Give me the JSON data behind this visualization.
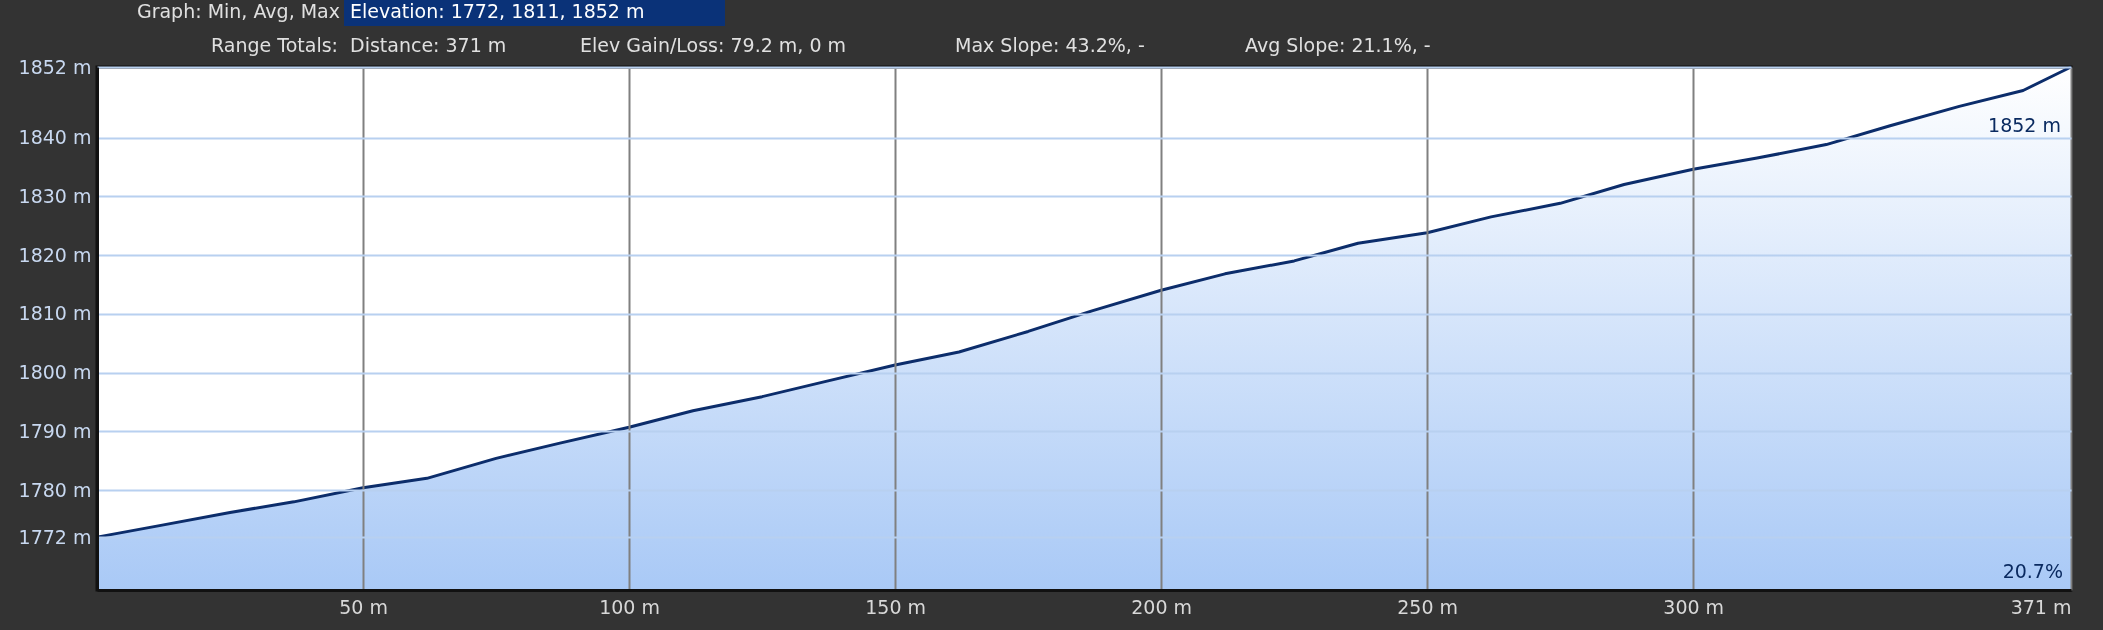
{
  "chart_data": {
    "type": "area",
    "annotations": [
      "Graph: Min, Avg, Max",
      "Elevation: 1772, 1811, 1852 m",
      "Range Totals:",
      "Distance: 371 m",
      "Elev Gain/Loss: 79.2 m, 0 m",
      "Max Slope: 43.2%, -",
      "Avg Slope: 21.1%, -",
      "20.7%",
      {
        "text": "1852 m",
        "x": 371,
        "y": 1852
      }
    ],
    "x": [
      0,
      12,
      25,
      37,
      50,
      62,
      75,
      87,
      100,
      112,
      125,
      137,
      150,
      162,
      175,
      187,
      200,
      212,
      225,
      237,
      250,
      262,
      275,
      287,
      300,
      312,
      325,
      337,
      350,
      362,
      371
    ],
    "series": [
      {
        "color": "#0c2d6b",
        "values": [
          1772,
          1774,
          1776.2,
          1778,
          1780.4,
          1782,
          1785.4,
          1788,
          1790.7,
          1793.5,
          1795.9,
          1798.5,
          1801.3,
          1803.5,
          1807,
          1810.5,
          1814,
          1816.8,
          1819,
          1822,
          1823.8,
          1826.5,
          1828.8,
          1832,
          1834.6,
          1836.5,
          1838.8,
          1842,
          1845.3,
          1848,
          1852
        ]
      }
    ],
    "xlim": [
      0,
      371
    ],
    "ylim": [
      1763,
      1852
    ],
    "xticks": [
      {
        "value": 50,
        "label": "50 m"
      },
      {
        "value": 100,
        "label": "100 m"
      },
      {
        "value": 150,
        "label": "150 m"
      },
      {
        "value": 200,
        "label": "200 m"
      },
      {
        "value": 250,
        "label": "250 m"
      },
      {
        "value": 300,
        "label": "300 m"
      },
      {
        "value": 371,
        "label": "371 m"
      }
    ],
    "yticks": [
      {
        "value": 1772,
        "label": "1772 m"
      },
      {
        "value": 1780,
        "label": "1780 m"
      },
      {
        "value": 1790,
        "label": "1790 m"
      },
      {
        "value": 1800,
        "label": "1800 m"
      },
      {
        "value": 1810,
        "label": "1810 m"
      },
      {
        "value": 1820,
        "label": "1820 m"
      },
      {
        "value": 1830,
        "label": "1830 m"
      },
      {
        "value": 1840,
        "label": "1840 m"
      },
      {
        "value": 1852,
        "label": "1852 m"
      }
    ],
    "grid": true
  }
}
